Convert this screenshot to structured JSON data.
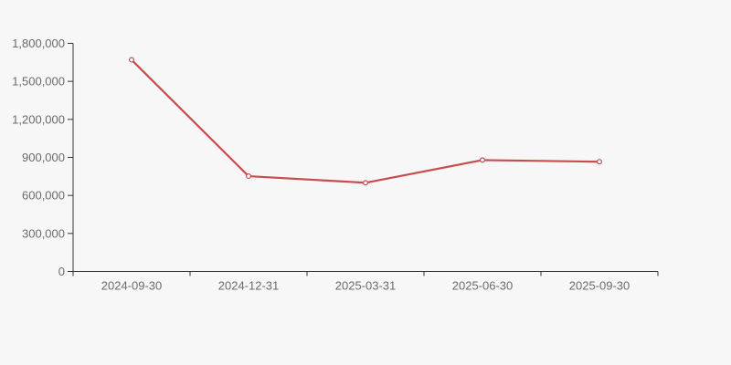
{
  "chart_data": {
    "type": "line",
    "title": "",
    "xlabel": "",
    "ylabel": "",
    "categories": [
      "2024-09-30",
      "2024-12-31",
      "2025-03-31",
      "2025-06-30",
      "2025-09-30"
    ],
    "values": [
      1670000,
      752000,
      700000,
      879000,
      866000
    ],
    "series": [
      {
        "name": "",
        "values": [
          1670000,
          752000,
          700000,
          879000,
          866000
        ]
      }
    ],
    "ylim": [
      0,
      1800000
    ],
    "y_ticks": [
      0,
      300000,
      600000,
      900000,
      1200000,
      1500000,
      1800000
    ],
    "y_tick_labels": [
      "0",
      "300,000",
      "600,000",
      "900,000",
      "1,200,000",
      "1,500,000",
      "1,800,000"
    ],
    "grid": false,
    "legend_position": "none",
    "marker": "hollow-circle",
    "colors": {
      "background": "#f7f7f7",
      "line": "#c54d4b",
      "marker_fill": "#ffffff",
      "axis": "#333333",
      "tick_label": "#6b6b6b"
    }
  }
}
